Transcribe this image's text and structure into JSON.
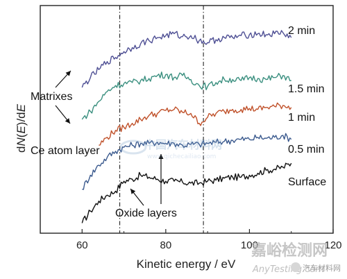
{
  "chart_data": {
    "type": "line",
    "title": "",
    "xlabel": "Kinetic energy / eV",
    "ylabel_parts": [
      "d",
      "N",
      "(",
      "E",
      ")/d",
      "E"
    ],
    "xlim": [
      50,
      120
    ],
    "xticks": [
      60,
      80,
      100,
      120
    ],
    "yticks": "none",
    "vlines": [
      69,
      89
    ],
    "series": [
      {
        "name": "Surface",
        "color": "#111111",
        "x": [
          60,
          62,
          64,
          66,
          68,
          70,
          72,
          74,
          76,
          78,
          80,
          82,
          84,
          86,
          88,
          90,
          92,
          94,
          96,
          98,
          100,
          102,
          104,
          106,
          108,
          110
        ],
        "y": [
          0.3,
          0.9,
          1.4,
          1.7,
          1.9,
          2.4,
          2.5,
          2.7,
          2.6,
          2.5,
          2.4,
          2.4,
          2.35,
          2.3,
          2.3,
          2.4,
          2.45,
          2.55,
          2.6,
          2.6,
          2.7,
          2.8,
          2.95,
          3.0,
          3.1,
          3.3
        ]
      },
      {
        "name": "0.5 min",
        "color": "#3b5a8e",
        "x": [
          60,
          62,
          64,
          66,
          68,
          70,
          72,
          74,
          76,
          78,
          80,
          82,
          84,
          86,
          88,
          90,
          92,
          94,
          96,
          98,
          100,
          102,
          104,
          106,
          108,
          110
        ],
        "y": [
          2.0,
          2.7,
          3.2,
          3.6,
          3.9,
          4.1,
          4.2,
          4.3,
          4.3,
          4.35,
          4.3,
          4.3,
          4.2,
          4.25,
          4.25,
          4.3,
          4.35,
          4.4,
          4.45,
          4.5,
          4.5,
          4.6,
          4.55,
          4.6,
          4.7,
          4.5
        ]
      },
      {
        "name": "1 min",
        "color": "#c0512a",
        "x": [
          64,
          66,
          68,
          70,
          72,
          74,
          76,
          78,
          80,
          82,
          84,
          86,
          88,
          90,
          92,
          94,
          96,
          98,
          100,
          102,
          104,
          106,
          108,
          110
        ],
        "y": [
          4.2,
          4.6,
          4.95,
          5.1,
          5.3,
          5.5,
          5.7,
          5.8,
          5.95,
          6.0,
          5.85,
          5.8,
          5.3,
          5.6,
          5.8,
          5.9,
          6.0,
          6.0,
          6.05,
          6.0,
          6.1,
          6.15,
          6.2,
          6.1
        ]
      },
      {
        "name": "1.5 min",
        "color": "#3a8f7f",
        "x": [
          60,
          62,
          64,
          66,
          68,
          70,
          72,
          74,
          76,
          78,
          80,
          82,
          84,
          86,
          88,
          90,
          92,
          94,
          96,
          98,
          100,
          102,
          104,
          106,
          108,
          110
        ],
        "y": [
          5.5,
          5.9,
          6.4,
          6.9,
          7.2,
          7.3,
          7.35,
          7.45,
          7.55,
          7.7,
          7.75,
          7.6,
          7.7,
          7.5,
          7.2,
          7.15,
          7.35,
          7.5,
          7.5,
          7.45,
          7.6,
          7.55,
          7.5,
          7.6,
          7.7,
          7.45
        ]
      },
      {
        "name": "2 min",
        "color": "#4e4f94",
        "x": [
          60,
          62,
          64,
          66,
          68,
          70,
          72,
          74,
          76,
          78,
          80,
          82,
          84,
          86,
          88,
          90,
          92,
          94,
          96,
          98,
          100,
          102,
          104,
          106,
          108,
          110
        ],
        "y": [
          7.1,
          7.6,
          8.0,
          8.4,
          8.6,
          8.9,
          9.1,
          9.3,
          9.45,
          9.6,
          9.7,
          9.8,
          9.65,
          9.7,
          9.45,
          9.35,
          9.5,
          9.6,
          9.6,
          9.7,
          9.75,
          9.8,
          9.75,
          9.8,
          9.85,
          9.6
        ]
      }
    ],
    "series_labels": [
      "2 min",
      "1.5 min",
      "1 min",
      "0.5 min",
      "Surface"
    ],
    "annotations": {
      "matrixes": "Matrixes",
      "ce_atom_layer": "Ce atom layer",
      "oxide_layers": "Oxide layers"
    },
    "watermark": {
      "line1": "嘉峪检测网",
      "line2": "AnyTesting.com",
      "center": "中国汽车材料网",
      "center_url": "www.qichecailiao.com",
      "badge": "汽车材料网"
    }
  }
}
